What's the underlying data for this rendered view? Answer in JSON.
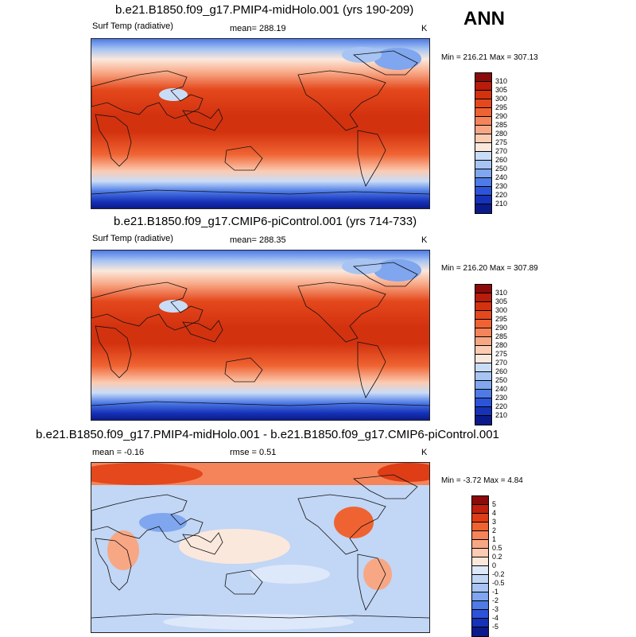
{
  "season": "ANN",
  "units": "K",
  "panels": [
    {
      "title": "b.e21.B1850.f09_g17.PMIP4-midHolo.001 (yrs 190-209)",
      "variable": "Surf Temp (radiative)",
      "stat": "mean= 288.19",
      "minmax": "Min = 216.21 Max = 307.13",
      "type": "abs"
    },
    {
      "title": "b.e21.B1850.f09_g17.CMIP6-piControl.001 (yrs 714-733)",
      "variable": "Surf Temp (radiative)",
      "stat": "mean= 288.35",
      "minmax": "Min = 216.20 Max = 307.89",
      "type": "abs"
    },
    {
      "title": "b.e21.B1850.f09_g17.PMIP4-midHolo.001 - b.e21.B1850.f09_g17.CMIP6-piControl.001",
      "variable": "mean =  -0.16",
      "stat": "rmse =   0.51",
      "minmax": "Min =  -3.72 Max =   4.84",
      "type": "diff"
    }
  ],
  "colorbar_abs": {
    "labels": [
      "310",
      "305",
      "300",
      "295",
      "290",
      "285",
      "280",
      "275",
      "270",
      "260",
      "250",
      "240",
      "230",
      "220",
      "210"
    ],
    "colors": [
      "#8b0a0a",
      "#b81c0a",
      "#d3320f",
      "#e4481c",
      "#ef6332",
      "#f5845a",
      "#f8a785",
      "#fbcbb2",
      "#fbe8dc",
      "#c9dcf7",
      "#a7c4f2",
      "#7fa6ee",
      "#4e7be6",
      "#2b54d9",
      "#1632b8",
      "#0b1a8a"
    ]
  },
  "colorbar_diff": {
    "labels": [
      "5",
      "4",
      "3",
      "2",
      "1",
      "0.5",
      "0.2",
      "0",
      "-0.2",
      "-0.5",
      "-1",
      "-2",
      "-3",
      "-4",
      "-5"
    ],
    "colors": [
      "#8b0a0a",
      "#c0200d",
      "#de3d16",
      "#ef6332",
      "#f5845a",
      "#f8a785",
      "#fbcbb2",
      "#fbe8dc",
      "#dde8fa",
      "#c2d6f5",
      "#a7c4f2",
      "#7fa6ee",
      "#4e7be6",
      "#2b54d9",
      "#1632b8",
      "#0b1a8a"
    ]
  }
}
